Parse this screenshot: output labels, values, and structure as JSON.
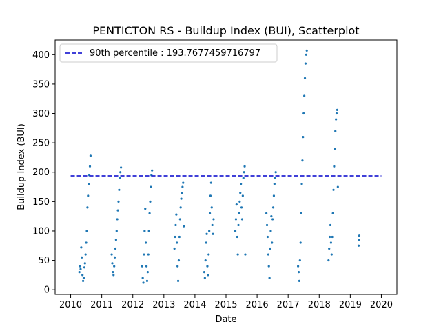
{
  "chart_data": {
    "type": "scatter",
    "title": "PENTICTON RS - Buildup Index (BUI), Scatterplot",
    "xlabel": "Date",
    "ylabel": "Buildup Index (BUI)",
    "xlim": [
      2009.5,
      2020.5
    ],
    "ylim": [
      -8,
      425
    ],
    "x_ticks": [
      2010,
      2011,
      2012,
      2013,
      2014,
      2015,
      2016,
      2017,
      2018,
      2019,
      2020
    ],
    "x_tick_labels": [
      "2010",
      "2011",
      "2012",
      "2013",
      "2014",
      "2015",
      "2016",
      "2017",
      "2018",
      "2019",
      "2020"
    ],
    "y_ticks": [
      0,
      50,
      100,
      150,
      200,
      250,
      300,
      350,
      400
    ],
    "y_tick_labels": [
      "0",
      "50",
      "100",
      "150",
      "200",
      "250",
      "300",
      "350",
      "400"
    ],
    "grid": false,
    "legend_position": "top-left",
    "point_color": "#1f77b4",
    "reference_line": {
      "label": "90th percentile : 193.7677459716797",
      "value": 193.7677459716797,
      "color": "#0000cc",
      "style": "dashed",
      "x_range": [
        2010.0,
        2020.0
      ]
    },
    "seasons": [
      {
        "year": 2010,
        "points": [
          [
            2010.28,
            30
          ],
          [
            2010.3,
            40
          ],
          [
            2010.32,
            35
          ],
          [
            2010.34,
            72
          ],
          [
            2010.36,
            55
          ],
          [
            2010.38,
            25
          ],
          [
            2010.4,
            15
          ],
          [
            2010.42,
            20
          ],
          [
            2010.44,
            38
          ],
          [
            2010.46,
            45
          ],
          [
            2010.48,
            60
          ],
          [
            2010.5,
            80
          ],
          [
            2010.52,
            100
          ],
          [
            2010.54,
            140
          ],
          [
            2010.56,
            160
          ],
          [
            2010.58,
            180
          ],
          [
            2010.6,
            195
          ],
          [
            2010.62,
            210
          ],
          [
            2010.64,
            228
          ]
        ]
      },
      {
        "year": 2011,
        "points": [
          [
            2011.32,
            60
          ],
          [
            2011.34,
            45
          ],
          [
            2011.36,
            30
          ],
          [
            2011.38,
            25
          ],
          [
            2011.4,
            40
          ],
          [
            2011.42,
            55
          ],
          [
            2011.44,
            70
          ],
          [
            2011.46,
            85
          ],
          [
            2011.48,
            100
          ],
          [
            2011.5,
            120
          ],
          [
            2011.52,
            135
          ],
          [
            2011.54,
            150
          ],
          [
            2011.56,
            170
          ],
          [
            2011.58,
            190
          ],
          [
            2011.6,
            200
          ],
          [
            2011.62,
            208
          ]
        ]
      },
      {
        "year": 2012,
        "points": [
          [
            2012.3,
            40
          ],
          [
            2012.32,
            20
          ],
          [
            2012.34,
            12
          ],
          [
            2012.36,
            60
          ],
          [
            2012.38,
            100
          ],
          [
            2012.4,
            138
          ],
          [
            2012.42,
            80
          ],
          [
            2012.44,
            40
          ],
          [
            2012.46,
            15
          ],
          [
            2012.48,
            30
          ],
          [
            2012.5,
            60
          ],
          [
            2012.52,
            100
          ],
          [
            2012.54,
            130
          ],
          [
            2012.56,
            150
          ],
          [
            2012.58,
            175
          ],
          [
            2012.6,
            195
          ],
          [
            2012.62,
            203
          ]
        ]
      },
      {
        "year": 2013,
        "points": [
          [
            2013.34,
            70
          ],
          [
            2013.36,
            90
          ],
          [
            2013.38,
            110
          ],
          [
            2013.4,
            128
          ],
          [
            2013.42,
            80
          ],
          [
            2013.44,
            40
          ],
          [
            2013.46,
            15
          ],
          [
            2013.48,
            50
          ],
          [
            2013.5,
            90
          ],
          [
            2013.52,
            120
          ],
          [
            2013.54,
            140
          ],
          [
            2013.56,
            155
          ],
          [
            2013.58,
            165
          ],
          [
            2013.6,
            175
          ],
          [
            2013.62,
            182
          ],
          [
            2013.64,
            108
          ]
        ]
      },
      {
        "year": 2014,
        "points": [
          [
            2014.3,
            30
          ],
          [
            2014.32,
            20
          ],
          [
            2014.34,
            50
          ],
          [
            2014.36,
            80
          ],
          [
            2014.38,
            95
          ],
          [
            2014.4,
            40
          ],
          [
            2014.42,
            25
          ],
          [
            2014.44,
            60
          ],
          [
            2014.46,
            100
          ],
          [
            2014.48,
            130
          ],
          [
            2014.5,
            160
          ],
          [
            2014.52,
            182
          ],
          [
            2014.54,
            140
          ],
          [
            2014.56,
            110
          ],
          [
            2014.58,
            95
          ],
          [
            2014.6,
            120
          ]
        ]
      },
      {
        "year": 2015,
        "points": [
          [
            2015.3,
            100
          ],
          [
            2015.32,
            120
          ],
          [
            2015.34,
            145
          ],
          [
            2015.36,
            90
          ],
          [
            2015.38,
            60
          ],
          [
            2015.4,
            110
          ],
          [
            2015.42,
            130
          ],
          [
            2015.44,
            150
          ],
          [
            2015.46,
            165
          ],
          [
            2015.48,
            180
          ],
          [
            2015.5,
            140
          ],
          [
            2015.52,
            120
          ],
          [
            2015.54,
            160
          ],
          [
            2015.56,
            190
          ],
          [
            2015.58,
            200
          ],
          [
            2015.6,
            210
          ],
          [
            2015.62,
            60
          ]
        ]
      },
      {
        "year": 2016,
        "points": [
          [
            2016.3,
            130
          ],
          [
            2016.32,
            110
          ],
          [
            2016.34,
            90
          ],
          [
            2016.36,
            60
          ],
          [
            2016.38,
            40
          ],
          [
            2016.4,
            20
          ],
          [
            2016.42,
            70
          ],
          [
            2016.44,
            100
          ],
          [
            2016.46,
            125
          ],
          [
            2016.48,
            80
          ],
          [
            2016.5,
            120
          ],
          [
            2016.52,
            140
          ],
          [
            2016.54,
            160
          ],
          [
            2016.56,
            180
          ],
          [
            2016.58,
            190
          ],
          [
            2016.6,
            200
          ]
        ]
      },
      {
        "year": 2017,
        "points": [
          [
            2017.32,
            40
          ],
          [
            2017.34,
            30
          ],
          [
            2017.36,
            15
          ],
          [
            2017.38,
            50
          ],
          [
            2017.4,
            80
          ],
          [
            2017.42,
            130
          ],
          [
            2017.44,
            180
          ],
          [
            2017.46,
            220
          ],
          [
            2017.48,
            260
          ],
          [
            2017.5,
            300
          ],
          [
            2017.52,
            330
          ],
          [
            2017.54,
            360
          ],
          [
            2017.56,
            385
          ],
          [
            2017.58,
            400
          ],
          [
            2017.6,
            407
          ]
        ]
      },
      {
        "year": 2018,
        "points": [
          [
            2018.3,
            50
          ],
          [
            2018.32,
            70
          ],
          [
            2018.34,
            90
          ],
          [
            2018.36,
            110
          ],
          [
            2018.38,
            80
          ],
          [
            2018.4,
            60
          ],
          [
            2018.42,
            90
          ],
          [
            2018.44,
            130
          ],
          [
            2018.46,
            170
          ],
          [
            2018.48,
            210
          ],
          [
            2018.5,
            240
          ],
          [
            2018.52,
            270
          ],
          [
            2018.54,
            290
          ],
          [
            2018.56,
            300
          ],
          [
            2018.58,
            306
          ],
          [
            2018.6,
            175
          ]
        ]
      },
      {
        "year": 2019,
        "points": [
          [
            2019.27,
            75
          ],
          [
            2019.28,
            85
          ],
          [
            2019.29,
            92
          ]
        ]
      }
    ]
  }
}
